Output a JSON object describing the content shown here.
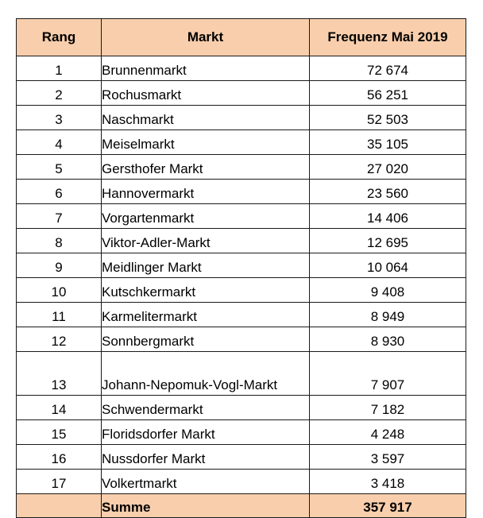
{
  "table": {
    "headers": {
      "rank": "Rang",
      "market": "Markt",
      "frequency": "Frequenz Mai 2019"
    },
    "rows": [
      {
        "rank": "1",
        "market": "Brunnenmarkt",
        "frequency": "72 674"
      },
      {
        "rank": "2",
        "market": "Rochusmarkt",
        "frequency": "56 251"
      },
      {
        "rank": "3",
        "market": "Naschmarkt",
        "frequency": "52 503"
      },
      {
        "rank": "4",
        "market": "Meiselmarkt",
        "frequency": "35 105"
      },
      {
        "rank": "5",
        "market": "Gersthofer Markt",
        "frequency": "27 020"
      },
      {
        "rank": "6",
        "market": "Hannovermarkt",
        "frequency": "23 560"
      },
      {
        "rank": "7",
        "market": "Vorgartenmarkt",
        "frequency": "14 406"
      },
      {
        "rank": "8",
        "market": "Viktor-Adler-Markt",
        "frequency": "12 695"
      },
      {
        "rank": "9",
        "market": "Meidlinger Markt",
        "frequency": "10 064"
      },
      {
        "rank": "10",
        "market": "Kutschkermarkt",
        "frequency": "9 408"
      },
      {
        "rank": "11",
        "market": "Karmelitermarkt",
        "frequency": "8 949"
      },
      {
        "rank": "12",
        "market": "Sonnbergmarkt",
        "frequency": "8 930"
      },
      {
        "rank": "13",
        "market": "Johann-Nepomuk-Vogl-Markt",
        "frequency": "7 907"
      },
      {
        "rank": "14",
        "market": "Schwendermarkt",
        "frequency": "7 182"
      },
      {
        "rank": "15",
        "market": "Floridsdorfer Markt",
        "frequency": "4 248"
      },
      {
        "rank": "16",
        "market": "Nussdorfer Markt",
        "frequency": "3 597"
      },
      {
        "rank": "17",
        "market": "Volkertmarkt",
        "frequency": "3 418"
      }
    ],
    "footer": {
      "rank": "",
      "label": "Summe",
      "total": "357 917"
    }
  },
  "colors": {
    "header_fill": "#f8ceac",
    "border": "#1a1a1a"
  }
}
